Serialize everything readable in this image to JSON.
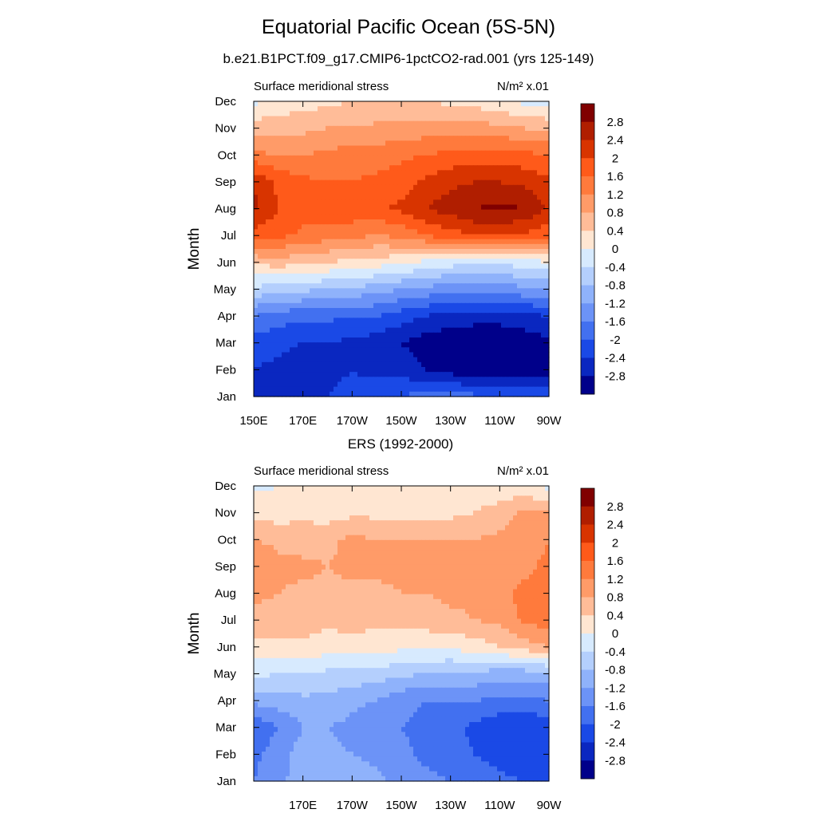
{
  "header": {
    "title": "Equatorial Pacific Ocean (5S-5N)",
    "subtitle": "b.e21.B1PCT.f09_g17.CMIP6-1pctCO2-rad.001 (yrs 125-149)"
  },
  "colorbar": {
    "labels": [
      "2.8",
      "2.4",
      "2",
      "1.6",
      "1.2",
      "0.8",
      "0.4",
      "0",
      "-0.4",
      "-0.8",
      "-1.2",
      "-1.6",
      "-2",
      "-2.4",
      "-2.8"
    ],
    "colors": [
      "#800000",
      "#b01e00",
      "#d83400",
      "#ff5a1a",
      "#ff7a3c",
      "#ff9b68",
      "#ffbc98",
      "#ffe6d2",
      "#d7eafe",
      "#b4cffd",
      "#8fb2fb",
      "#6c93f7",
      "#4270f0",
      "#1a49e6",
      "#0a27c0",
      "#00008a"
    ]
  },
  "chart_data": [
    {
      "type": "heatmap",
      "panel_title": "",
      "left_label": "Surface meridional stress",
      "units_label": "N/m² x.01",
      "ylabel": "Month",
      "xlabel": "",
      "x_ticks": [
        "150E",
        "170E",
        "170W",
        "150W",
        "130W",
        "110W",
        "90W"
      ],
      "y_ticks": [
        "Jan",
        "Feb",
        "Mar",
        "Apr",
        "May",
        "Jun",
        "Jul",
        "Aug",
        "Sep",
        "Oct",
        "Nov",
        "Dec"
      ],
      "x_lon": [
        150,
        160,
        170,
        180,
        190,
        200,
        210,
        220,
        230,
        240,
        250,
        260,
        270
      ],
      "months": [
        "Jan",
        "Feb",
        "Mar",
        "Apr",
        "May",
        "Jun",
        "Jul",
        "Aug",
        "Sep",
        "Oct",
        "Nov",
        "Dec"
      ],
      "values": [
        [
          -2.5,
          -2.6,
          -2.5,
          -2.4,
          -2.3,
          -2.2,
          -2.0,
          -1.8,
          -1.8,
          -1.9,
          -2.0,
          -2.1,
          -2.0
        ],
        [
          -2.4,
          -2.5,
          -2.6,
          -2.5,
          -2.4,
          -2.5,
          -2.6,
          -2.8,
          -3.0,
          -3.1,
          -3.1,
          -3.1,
          -3.0
        ],
        [
          -2.2,
          -2.3,
          -2.4,
          -2.4,
          -2.5,
          -2.6,
          -2.8,
          -3.0,
          -3.1,
          -3.2,
          -3.2,
          -3.1,
          -2.9
        ],
        [
          -1.6,
          -1.8,
          -1.9,
          -1.9,
          -2.0,
          -2.0,
          -2.2,
          -2.4,
          -2.6,
          -2.6,
          -2.6,
          -2.5,
          -2.4
        ],
        [
          -0.5,
          -0.6,
          -0.7,
          -0.8,
          -0.9,
          -1.0,
          -1.2,
          -1.3,
          -1.5,
          -1.5,
          -1.4,
          -1.3,
          -1.2
        ],
        [
          0.5,
          0.6,
          0.5,
          0.4,
          0.3,
          0.2,
          0.1,
          -0.1,
          -0.2,
          -0.3,
          -0.3,
          -0.2,
          0.0
        ],
        [
          1.8,
          1.7,
          1.5,
          1.4,
          1.3,
          1.2,
          1.3,
          1.6,
          1.8,
          2.0,
          2.0,
          1.9,
          1.7
        ],
        [
          2.5,
          2.0,
          1.8,
          1.9,
          1.9,
          1.9,
          2.1,
          2.4,
          2.6,
          2.8,
          2.9,
          2.8,
          2.3
        ],
        [
          2.4,
          1.9,
          1.7,
          1.6,
          1.6,
          1.7,
          1.8,
          2.1,
          2.3,
          2.4,
          2.4,
          2.3,
          2.1
        ],
        [
          1.3,
          1.2,
          1.2,
          1.3,
          1.4,
          1.4,
          1.5,
          1.6,
          1.7,
          1.8,
          1.8,
          1.7,
          1.6
        ],
        [
          0.6,
          0.7,
          0.7,
          0.8,
          0.8,
          0.9,
          0.9,
          1.0,
          1.0,
          1.0,
          0.9,
          0.8,
          0.7
        ],
        [
          -0.1,
          0.1,
          0.2,
          0.3,
          0.4,
          0.4,
          0.4,
          0.4,
          0.3,
          0.2,
          0.1,
          -0.1,
          -0.2
        ]
      ],
      "zlim": [
        -3.2,
        3.2
      ],
      "contour_interval": 0.4
    },
    {
      "type": "heatmap",
      "panel_title": "ERS (1992-2000)",
      "left_label": "Surface meridional stress",
      "units_label": "N/m² x.01",
      "ylabel": "Month",
      "xlabel": "",
      "x_ticks": [
        "170E",
        "170W",
        "150W",
        "130W",
        "110W",
        "90W"
      ],
      "y_ticks": [
        "Jan",
        "Feb",
        "Mar",
        "Apr",
        "May",
        "Jun",
        "Jul",
        "Aug",
        "Sep",
        "Oct",
        "Nov",
        "Dec"
      ],
      "x_lon": [
        150,
        160,
        170,
        180,
        190,
        200,
        210,
        220,
        230,
        240,
        250,
        260,
        270
      ],
      "months": [
        "Jan",
        "Feb",
        "Mar",
        "Apr",
        "May",
        "Jun",
        "Jul",
        "Aug",
        "Sep",
        "Oct",
        "Nov",
        "Dec"
      ],
      "values": [
        [
          -1.6,
          -1.3,
          -1.0,
          -0.9,
          -1.0,
          -1.1,
          -1.3,
          -1.5,
          -1.6,
          -1.7,
          -1.9,
          -2.0,
          -2.1
        ],
        [
          -1.7,
          -1.4,
          -1.0,
          -1.1,
          -1.2,
          -1.3,
          -1.5,
          -1.7,
          -1.8,
          -2.0,
          -2.2,
          -2.3,
          -2.3
        ],
        [
          -1.9,
          -1.6,
          -1.2,
          -1.2,
          -1.3,
          -1.5,
          -1.6,
          -1.7,
          -1.9,
          -2.1,
          -2.3,
          -2.4,
          -2.2
        ],
        [
          -1.1,
          -1.0,
          -0.9,
          -0.9,
          -1.1,
          -1.2,
          -1.5,
          -1.6,
          -1.6,
          -1.6,
          -1.7,
          -1.7,
          -1.6
        ],
        [
          -0.3,
          -0.4,
          -0.4,
          -0.5,
          -0.5,
          -0.6,
          -0.7,
          -0.8,
          -0.9,
          -0.9,
          -1.0,
          -1.0,
          -0.9
        ],
        [
          0.3,
          0.3,
          0.3,
          0.2,
          0.2,
          0.2,
          0.1,
          0.1,
          0.1,
          0.2,
          0.4,
          0.6,
          0.8
        ],
        [
          0.7,
          0.6,
          0.6,
          0.5,
          0.6,
          0.5,
          0.6,
          0.6,
          0.7,
          0.8,
          0.9,
          1.3,
          1.4
        ],
        [
          0.9,
          0.8,
          0.7,
          0.7,
          0.7,
          0.7,
          0.8,
          0.8,
          0.9,
          0.9,
          1.1,
          1.3,
          1.4
        ],
        [
          1.2,
          0.9,
          0.9,
          0.8,
          0.9,
          0.9,
          0.9,
          0.9,
          0.9,
          0.9,
          1.0,
          1.1,
          1.3
        ],
        [
          0.8,
          0.7,
          0.6,
          0.7,
          0.9,
          0.8,
          0.8,
          0.8,
          0.8,
          0.8,
          0.9,
          1.0,
          1.2
        ],
        [
          0.3,
          0.2,
          0.3,
          0.2,
          0.3,
          0.3,
          0.2,
          0.3,
          0.3,
          0.4,
          0.6,
          0.9,
          0.8
        ],
        [
          -0.1,
          0.0,
          0.1,
          0.0,
          0.1,
          0.1,
          0.1,
          0.2,
          0.2,
          0.1,
          0.1,
          0.1,
          -0.1
        ]
      ],
      "zlim": [
        -3.2,
        3.2
      ],
      "contour_interval": 0.4
    }
  ]
}
